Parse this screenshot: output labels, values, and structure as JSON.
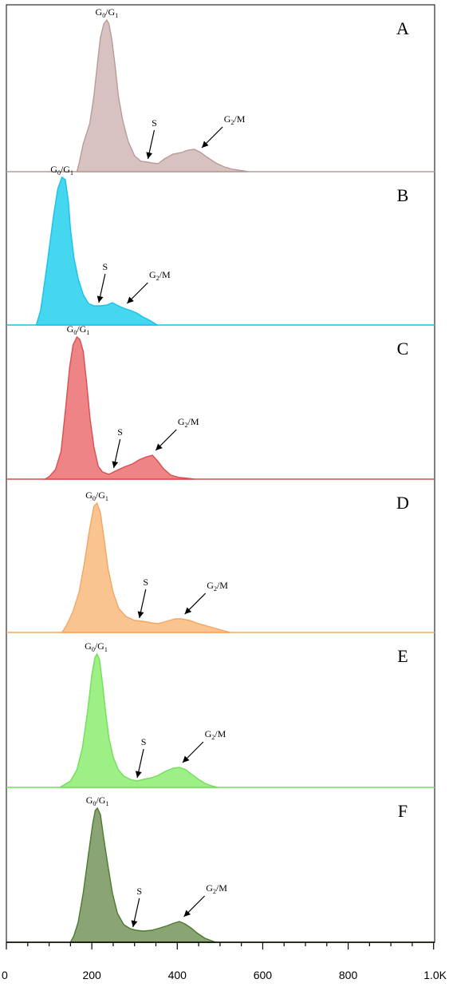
{
  "chart_data": {
    "type": "area",
    "xlabel": "",
    "xlim": [
      0,
      1024
    ],
    "x_ticks": [
      {
        "value": 0,
        "label": "0"
      },
      {
        "value": 200,
        "label": "200"
      },
      {
        "value": 400,
        "label": "400"
      },
      {
        "value": 600,
        "label": "600"
      },
      {
        "value": 800,
        "label": "800"
      },
      {
        "value": 1000,
        "label": "1.0K"
      }
    ],
    "grid": false,
    "legend": "none",
    "panels": [
      {
        "letter": "A",
        "fill": "#d8c2c1",
        "stroke": "#b99a98",
        "labels": {
          "g01": [
            "G",
            "0",
            "/G",
            "1"
          ],
          "s": [
            "S"
          ],
          "g2m": [
            "G",
            "2",
            "/M"
          ]
        },
        "points": [
          [
            165,
            0
          ],
          [
            170,
            10
          ],
          [
            180,
            35
          ],
          [
            195,
            60
          ],
          [
            205,
            95
          ],
          [
            212,
            130
          ],
          [
            220,
            168
          ],
          [
            228,
            185
          ],
          [
            235,
            190
          ],
          [
            240,
            185
          ],
          [
            247,
            165
          ],
          [
            255,
            130
          ],
          [
            262,
            95
          ],
          [
            272,
            65
          ],
          [
            285,
            38
          ],
          [
            300,
            20
          ],
          [
            315,
            13
          ],
          [
            330,
            12
          ],
          [
            340,
            11
          ],
          [
            355,
            10
          ],
          [
            370,
            16
          ],
          [
            390,
            22
          ],
          [
            410,
            24
          ],
          [
            425,
            27
          ],
          [
            440,
            28
          ],
          [
            455,
            24
          ],
          [
            470,
            18
          ],
          [
            490,
            11
          ],
          [
            510,
            6
          ],
          [
            530,
            3
          ],
          [
            555,
            1
          ],
          [
            565,
            0
          ]
        ],
        "annotations": {
          "g01_x": 235,
          "s_x": 335,
          "g2m_x": 450
        }
      },
      {
        "letter": "B",
        "fill": "#45d6f0",
        "stroke": "#1bc1ea",
        "labels": {
          "g01": [
            "G",
            "0",
            "/G",
            "1"
          ],
          "s": [
            "S"
          ],
          "g2m": [
            "G",
            "2",
            "/M"
          ]
        },
        "points": [
          [
            70,
            0
          ],
          [
            80,
            18
          ],
          [
            90,
            55
          ],
          [
            100,
            95
          ],
          [
            110,
            135
          ],
          [
            120,
            170
          ],
          [
            130,
            185
          ],
          [
            138,
            182
          ],
          [
            145,
            155
          ],
          [
            150,
            120
          ],
          [
            158,
            85
          ],
          [
            168,
            58
          ],
          [
            180,
            38
          ],
          [
            192,
            27
          ],
          [
            205,
            24
          ],
          [
            220,
            24
          ],
          [
            235,
            25
          ],
          [
            248,
            28
          ],
          [
            262,
            24
          ],
          [
            275,
            21
          ],
          [
            292,
            18
          ],
          [
            305,
            15
          ],
          [
            320,
            10
          ],
          [
            335,
            6
          ],
          [
            350,
            1
          ],
          [
            355,
            0
          ]
        ],
        "annotations": {
          "g01_x": 130,
          "s_x": 220,
          "g2m_x": 275
        }
      },
      {
        "letter": "C",
        "fill": "#ee8485",
        "stroke": "#d94f52",
        "labels": {
          "g01": [
            "G",
            "0",
            "/G",
            "1"
          ],
          "s": [
            "S"
          ],
          "g2m": [
            "G",
            "2",
            "/M"
          ]
        },
        "points": [
          [
            90,
            0
          ],
          [
            100,
            3
          ],
          [
            115,
            12
          ],
          [
            128,
            35
          ],
          [
            138,
            85
          ],
          [
            148,
            140
          ],
          [
            156,
            168
          ],
          [
            165,
            178
          ],
          [
            172,
            175
          ],
          [
            180,
            160
          ],
          [
            188,
            120
          ],
          [
            196,
            75
          ],
          [
            205,
            40
          ],
          [
            215,
            16
          ],
          [
            225,
            9
          ],
          [
            240,
            6
          ],
          [
            255,
            10
          ],
          [
            275,
            15
          ],
          [
            295,
            19
          ],
          [
            310,
            24
          ],
          [
            328,
            28
          ],
          [
            342,
            30
          ],
          [
            355,
            22
          ],
          [
            368,
            13
          ],
          [
            385,
            5
          ],
          [
            405,
            2
          ],
          [
            425,
            1
          ],
          [
            440,
            0
          ]
        ],
        "annotations": {
          "g01_x": 168,
          "s_x": 255,
          "g2m_x": 342
        }
      },
      {
        "letter": "D",
        "fill": "#fac490",
        "stroke": "#f3a660",
        "labels": {
          "g01": [
            "G",
            "0",
            "/G",
            "1"
          ],
          "s": [
            "S"
          ],
          "g2m": [
            "G",
            "2",
            "/M"
          ]
        },
        "points": [
          [
            130,
            0
          ],
          [
            140,
            8
          ],
          [
            155,
            25
          ],
          [
            170,
            50
          ],
          [
            182,
            85
          ],
          [
            195,
            130
          ],
          [
            205,
            158
          ],
          [
            212,
            162
          ],
          [
            220,
            150
          ],
          [
            228,
            120
          ],
          [
            238,
            80
          ],
          [
            250,
            50
          ],
          [
            263,
            30
          ],
          [
            280,
            20
          ],
          [
            300,
            15
          ],
          [
            320,
            14
          ],
          [
            340,
            12
          ],
          [
            355,
            11
          ],
          [
            375,
            14
          ],
          [
            395,
            17
          ],
          [
            410,
            17
          ],
          [
            430,
            15
          ],
          [
            450,
            11
          ],
          [
            470,
            8
          ],
          [
            490,
            5
          ],
          [
            510,
            2
          ],
          [
            525,
            0
          ]
        ],
        "annotations": {
          "g01_x": 212,
          "s_x": 315,
          "g2m_x": 410
        }
      },
      {
        "letter": "E",
        "fill": "#9df085",
        "stroke": "#70e058",
        "labels": {
          "g01": [
            "G",
            "0",
            "/G",
            "1"
          ],
          "s": [
            "S"
          ],
          "g2m": [
            "G",
            "2",
            "/M"
          ]
        },
        "points": [
          [
            125,
            0
          ],
          [
            135,
            3
          ],
          [
            150,
            8
          ],
          [
            165,
            22
          ],
          [
            178,
            50
          ],
          [
            190,
            95
          ],
          [
            200,
            140
          ],
          [
            207,
            162
          ],
          [
            212,
            167
          ],
          [
            218,
            160
          ],
          [
            225,
            130
          ],
          [
            232,
            95
          ],
          [
            240,
            62
          ],
          [
            250,
            38
          ],
          [
            262,
            22
          ],
          [
            275,
            14
          ],
          [
            290,
            10
          ],
          [
            305,
            8
          ],
          [
            320,
            10
          ],
          [
            340,
            12
          ],
          [
            355,
            15
          ],
          [
            372,
            20
          ],
          [
            390,
            24
          ],
          [
            405,
            25
          ],
          [
            420,
            22
          ],
          [
            435,
            16
          ],
          [
            450,
            10
          ],
          [
            465,
            5
          ],
          [
            480,
            2
          ],
          [
            495,
            0
          ]
        ],
        "annotations": {
          "g01_x": 210,
          "s_x": 310,
          "g2m_x": 405
        }
      },
      {
        "letter": "F",
        "fill": "#8aa476",
        "stroke": "#4b7b2c",
        "labels": {
          "g01": [
            "G",
            "0",
            "/G",
            "1"
          ],
          "s": [
            "S"
          ],
          "g2m": [
            "G",
            "2",
            "/M"
          ]
        },
        "points": [
          [
            150,
            0
          ],
          [
            158,
            8
          ],
          [
            168,
            25
          ],
          [
            180,
            62
          ],
          [
            192,
            110
          ],
          [
            202,
            148
          ],
          [
            208,
            165
          ],
          [
            213,
            168
          ],
          [
            220,
            160
          ],
          [
            228,
            130
          ],
          [
            238,
            95
          ],
          [
            248,
            62
          ],
          [
            260,
            36
          ],
          [
            275,
            22
          ],
          [
            290,
            17
          ],
          [
            305,
            15
          ],
          [
            320,
            14
          ],
          [
            340,
            15
          ],
          [
            360,
            18
          ],
          [
            378,
            21
          ],
          [
            392,
            24
          ],
          [
            405,
            26
          ],
          [
            418,
            23
          ],
          [
            432,
            18
          ],
          [
            448,
            11
          ],
          [
            465,
            5
          ],
          [
            480,
            2
          ],
          [
            490,
            0
          ]
        ],
        "annotations": {
          "g01_x": 213,
          "s_x": 300,
          "g2m_x": 408
        }
      }
    ]
  }
}
